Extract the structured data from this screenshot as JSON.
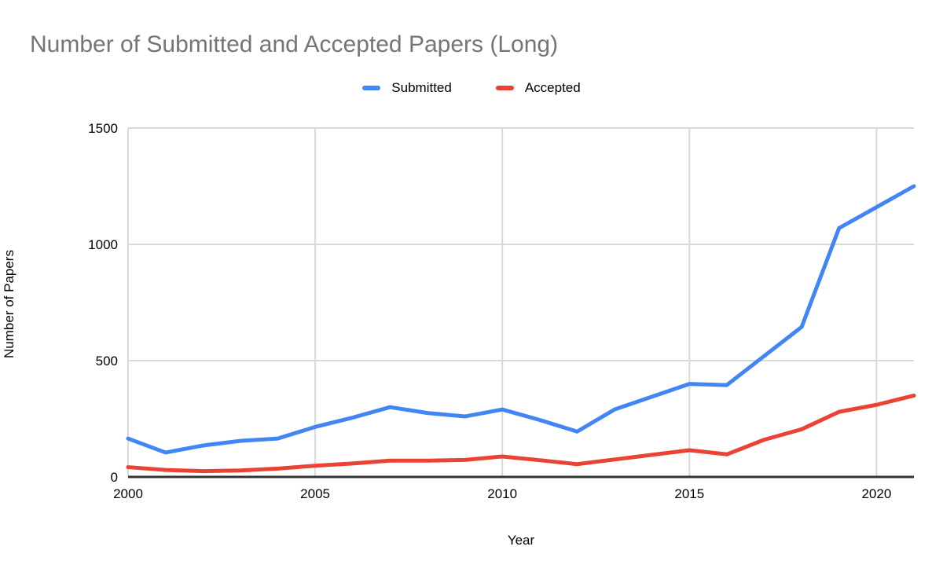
{
  "title": "Number of Submitted and Accepted Papers (Long)",
  "chart_data": {
    "type": "line",
    "title": "Number of Submitted and Accepted Papers (Long)",
    "xlabel": "Year",
    "ylabel": "Number of Papers",
    "xlim": [
      2000,
      2021
    ],
    "ylim": [
      0,
      1500
    ],
    "xticks": [
      2000,
      2005,
      2010,
      2015,
      2020
    ],
    "yticks": [
      0,
      500,
      1000,
      1500
    ],
    "grid": true,
    "legend_position": "top",
    "x": [
      2000,
      2001,
      2002,
      2003,
      2004,
      2005,
      2006,
      2007,
      2008,
      2009,
      2010,
      2011,
      2012,
      2013,
      2014,
      2015,
      2016,
      2017,
      2018,
      2019,
      2020,
      2021
    ],
    "series": [
      {
        "name": "Submitted",
        "color": "#4285F4",
        "values": [
          165,
          105,
          135,
          155,
          165,
          215,
          255,
          300,
          275,
          260,
          290,
          245,
          195,
          290,
          345,
          400,
          395,
          520,
          645,
          1070,
          1160,
          1250
        ]
      },
      {
        "name": "Accepted",
        "color": "#EA4335",
        "values": [
          42,
          30,
          25,
          28,
          36,
          48,
          58,
          70,
          70,
          73,
          88,
          72,
          55,
          75,
          95,
          115,
          97,
          160,
          205,
          280,
          310,
          350
        ]
      }
    ],
    "colors": {
      "title_text": "#757575",
      "axis_text": "#000000",
      "gridline": "#d9d9d9",
      "baseline": "#333333"
    }
  }
}
